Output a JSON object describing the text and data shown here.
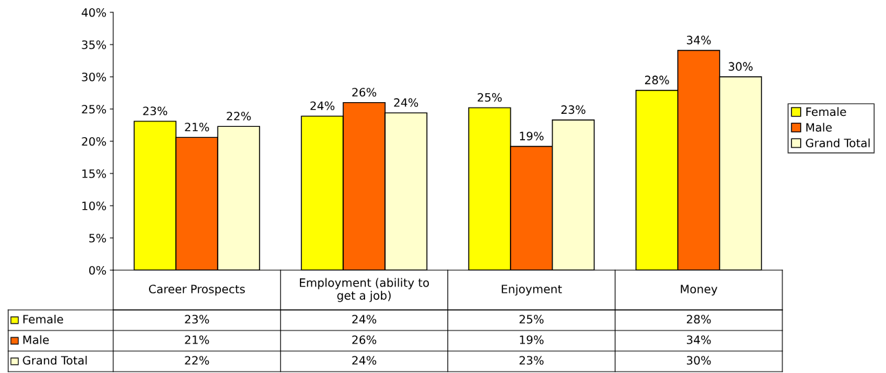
{
  "chart_data": {
    "type": "bar",
    "categories": [
      "Career Prospects",
      "Employment (ability to get a job)",
      "Enjoyment",
      "Money"
    ],
    "series": [
      {
        "name": "Female",
        "color": "#ffff00",
        "values": [
          23.1,
          23.9,
          25.2,
          27.9
        ],
        "value_labels": [
          "23%",
          "24%",
          "25%",
          "28%"
        ]
      },
      {
        "name": "Male",
        "color": "#ff6600",
        "values": [
          20.6,
          26.0,
          19.2,
          34.1
        ],
        "value_labels": [
          "21%",
          "26%",
          "19%",
          "34%"
        ]
      },
      {
        "name": "Grand Total",
        "color": "#ffffcc",
        "values": [
          22.3,
          24.4,
          23.3,
          30.0
        ],
        "value_labels": [
          "22%",
          "24%",
          "23%",
          "30%"
        ]
      }
    ],
    "ylim": [
      0,
      40
    ],
    "yticks": [
      {
        "value": 0,
        "label": "0%"
      },
      {
        "value": 5,
        "label": "5%"
      },
      {
        "value": 10,
        "label": "10%"
      },
      {
        "value": 15,
        "label": "15%"
      },
      {
        "value": 20,
        "label": "20%"
      },
      {
        "value": 25,
        "label": "25%"
      },
      {
        "value": 30,
        "label": "30%"
      },
      {
        "value": 35,
        "label": "35%"
      },
      {
        "value": 40,
        "label": "40%"
      }
    ],
    "legend": "right",
    "grid": false
  }
}
